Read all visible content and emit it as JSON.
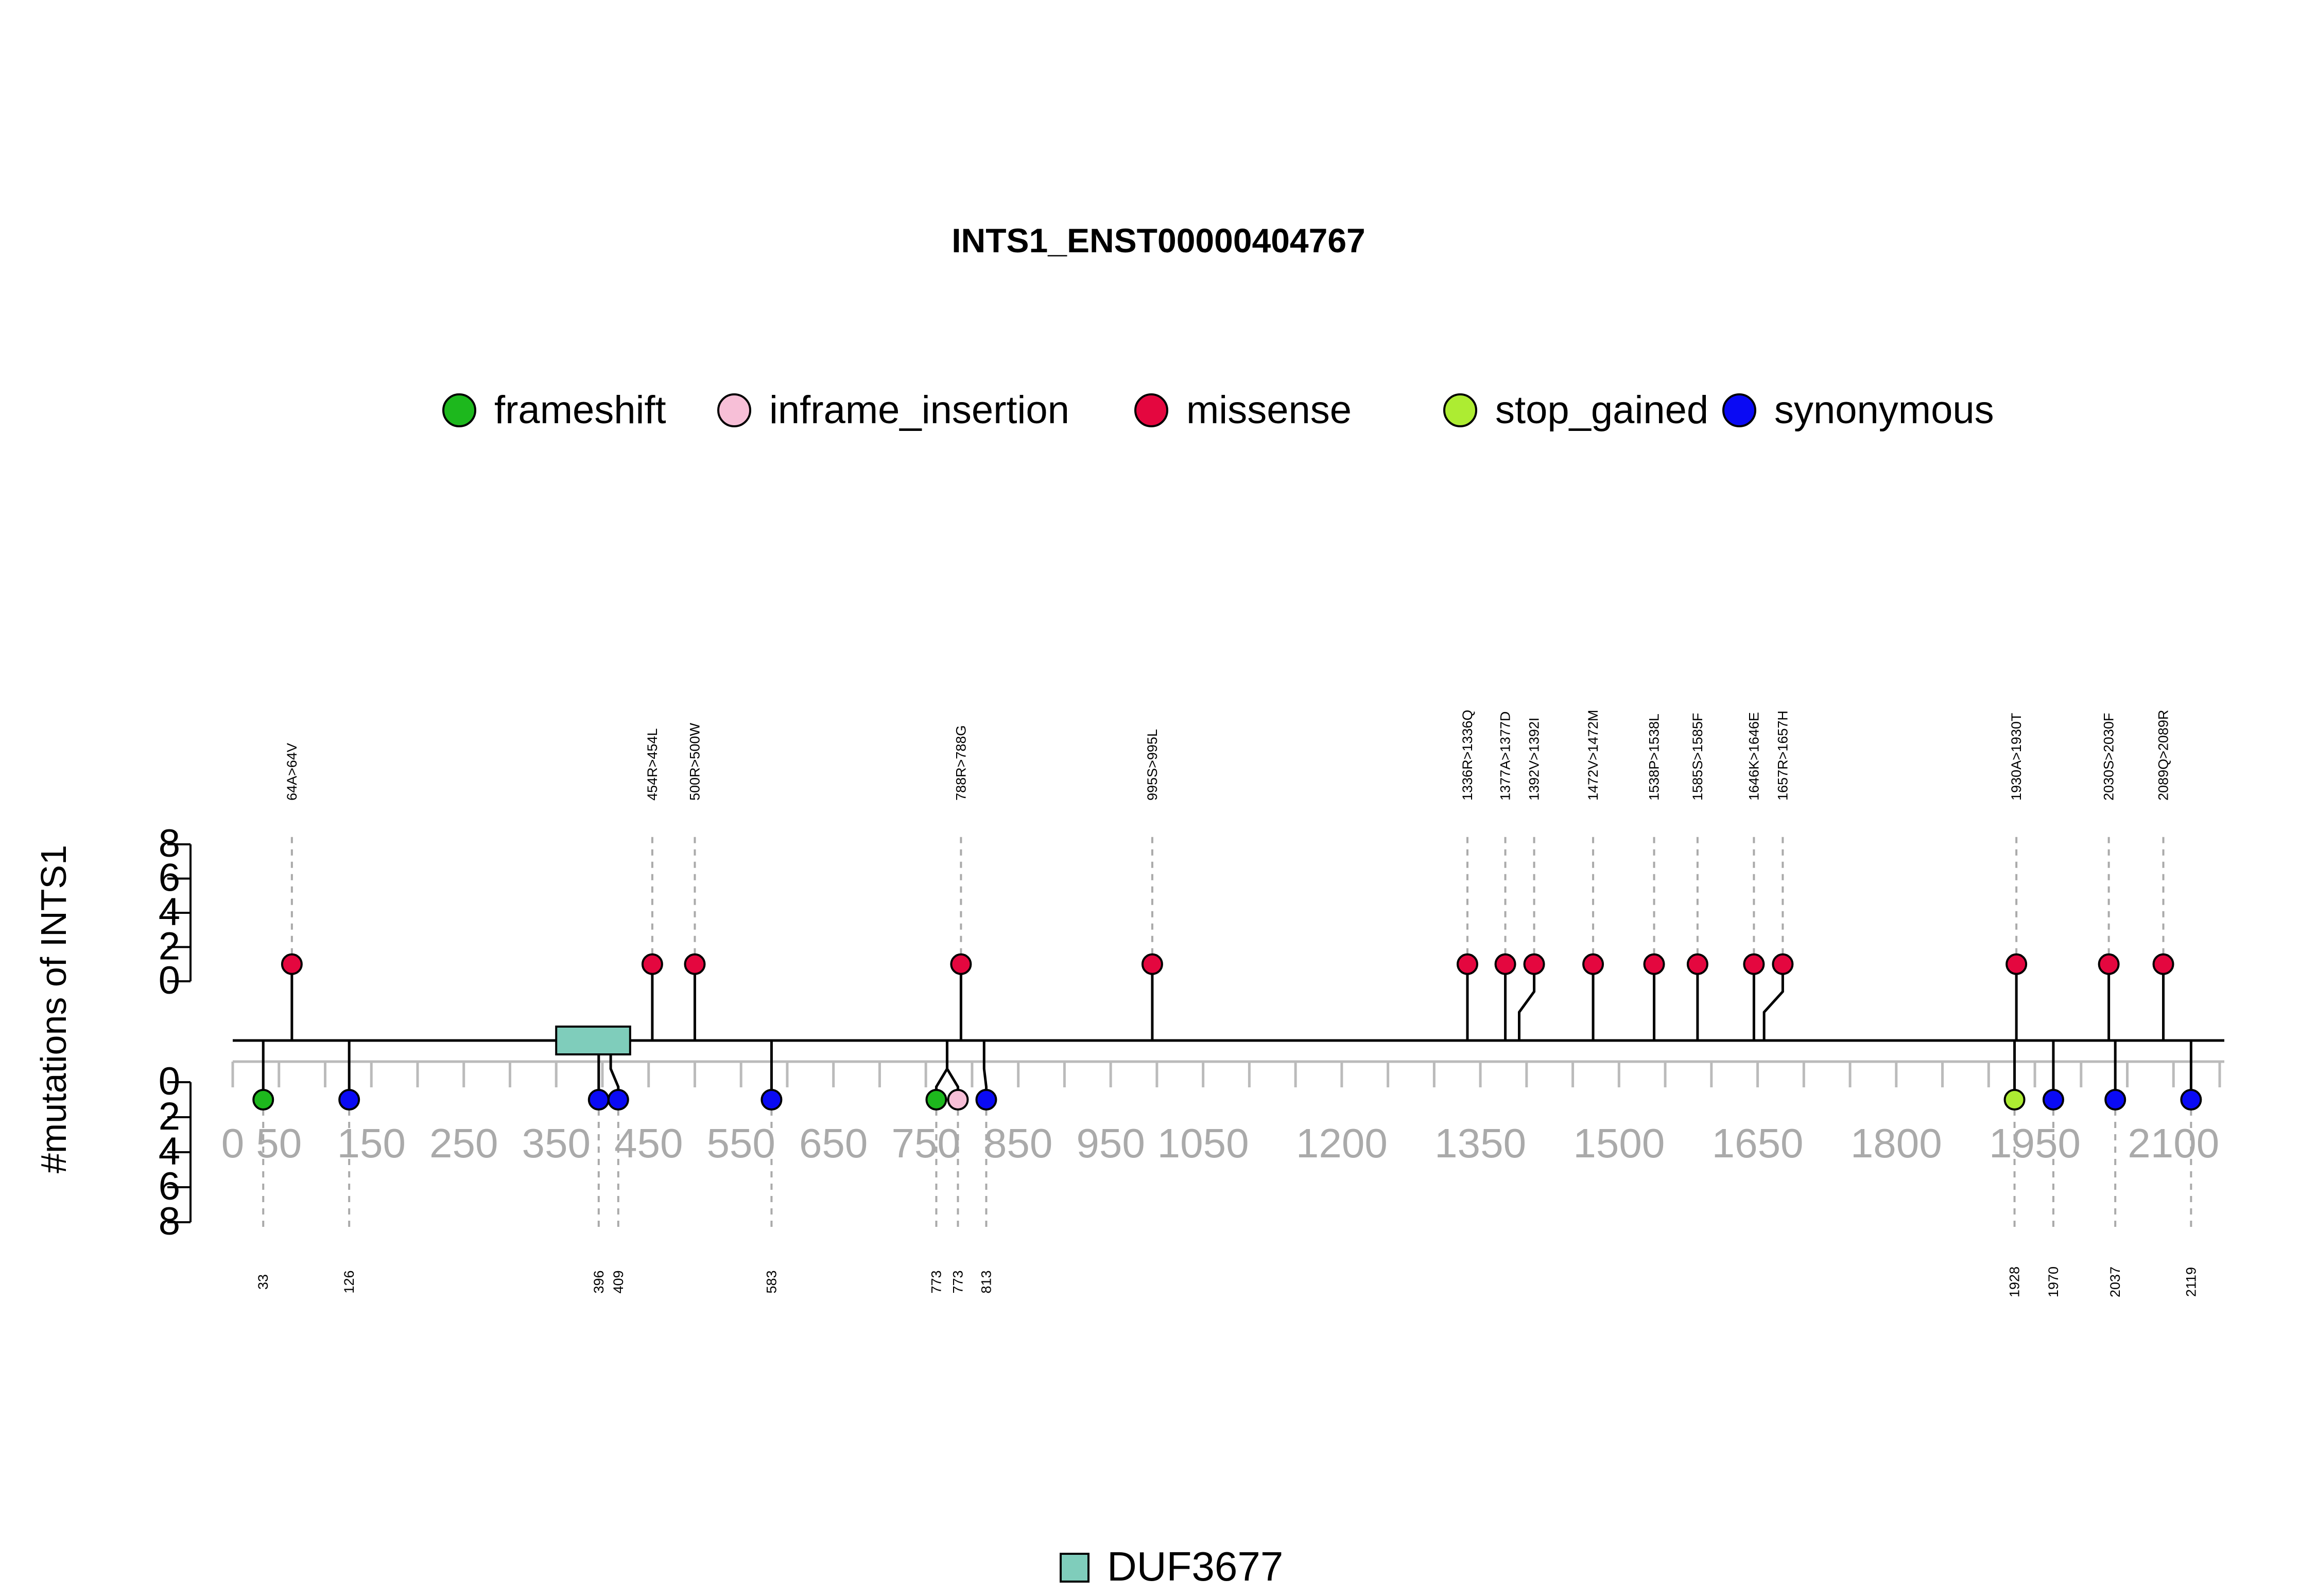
{
  "chart_data": {
    "type": "lollipop",
    "title": "INTS1_ENST00000404767",
    "ylabel": "#mutations of INTS1",
    "xlim": [
      0,
      2155
    ],
    "x_ticks": [
      0,
      50,
      150,
      250,
      350,
      450,
      550,
      650,
      750,
      850,
      950,
      1050,
      1200,
      1350,
      1500,
      1650,
      1800,
      1950,
      2100
    ],
    "y_ticks": [
      0,
      2,
      4,
      6,
      8
    ],
    "ylim": [
      0,
      8
    ],
    "legend": [
      {
        "name": "frameshift",
        "color": "#1DB81D"
      },
      {
        "name": "inframe_insertion",
        "color": "#F7BFD7"
      },
      {
        "name": "missense",
        "color": "#E4073F"
      },
      {
        "name": "stop_gained",
        "color": "#ADEC32"
      },
      {
        "name": "synonymous",
        "color": "#0A0AF4"
      }
    ],
    "domains": [
      {
        "name": "DUF3677",
        "start": 350,
        "end": 430,
        "color": "#7FCDBB"
      }
    ],
    "upper_mutations": [
      {
        "pos": 64,
        "label": "64A>64V",
        "type": "missense",
        "count": 1
      },
      {
        "pos": 454,
        "label": "454R>454L",
        "type": "missense",
        "count": 1
      },
      {
        "pos": 500,
        "label": "500R>500W",
        "type": "missense",
        "count": 1
      },
      {
        "pos": 788,
        "label": "788R>788G",
        "type": "missense",
        "count": 1
      },
      {
        "pos": 995,
        "label": "995S>995L",
        "type": "missense",
        "count": 1
      },
      {
        "pos": 1336,
        "label": "1336R>1336Q",
        "type": "missense",
        "count": 1
      },
      {
        "pos": 1377,
        "label": "1377A>1377D",
        "type": "missense",
        "count": 1
      },
      {
        "pos": 1392,
        "label": "1392V>1392I",
        "type": "missense",
        "count": 1
      },
      {
        "pos": 1472,
        "label": "1472V>1472M",
        "type": "missense",
        "count": 1
      },
      {
        "pos": 1538,
        "label": "1538P>1538L",
        "type": "missense",
        "count": 1
      },
      {
        "pos": 1585,
        "label": "1585S>1585F",
        "type": "missense",
        "count": 1
      },
      {
        "pos": 1646,
        "label": "1646K>1646E",
        "type": "missense",
        "count": 1
      },
      {
        "pos": 1657,
        "label": "1657R>1657H",
        "type": "missense",
        "count": 1
      },
      {
        "pos": 1930,
        "label": "1930A>1930T",
        "type": "missense",
        "count": 1
      },
      {
        "pos": 2030,
        "label": "2030S>2030F",
        "type": "missense",
        "count": 1
      },
      {
        "pos": 2089,
        "label": "2089Q>2089R",
        "type": "missense",
        "count": 1
      }
    ],
    "lower_mutations": [
      {
        "pos": 33,
        "label": "33",
        "type": "frameshift",
        "count": 1
      },
      {
        "pos": 126,
        "label": "126",
        "type": "synonymous",
        "count": 1
      },
      {
        "pos": 396,
        "label": "396",
        "type": "synonymous",
        "count": 1
      },
      {
        "pos": 409,
        "label": "409",
        "type": "synonymous",
        "count": 1
      },
      {
        "pos": 583,
        "label": "583",
        "type": "synonymous",
        "count": 1
      },
      {
        "pos": 773,
        "label": "773",
        "type": "frameshift",
        "count": 1
      },
      {
        "pos": 773,
        "label": "773",
        "type": "inframe_insertion",
        "count": 1
      },
      {
        "pos": 813,
        "label": "813",
        "type": "synonymous",
        "count": 1
      },
      {
        "pos": 1928,
        "label": "1928",
        "type": "stop_gained",
        "count": 1
      },
      {
        "pos": 1970,
        "label": "1970",
        "type": "synonymous",
        "count": 1
      },
      {
        "pos": 2037,
        "label": "2037",
        "type": "synonymous",
        "count": 1
      },
      {
        "pos": 2119,
        "label": "2119",
        "type": "synonymous",
        "count": 1
      }
    ]
  }
}
